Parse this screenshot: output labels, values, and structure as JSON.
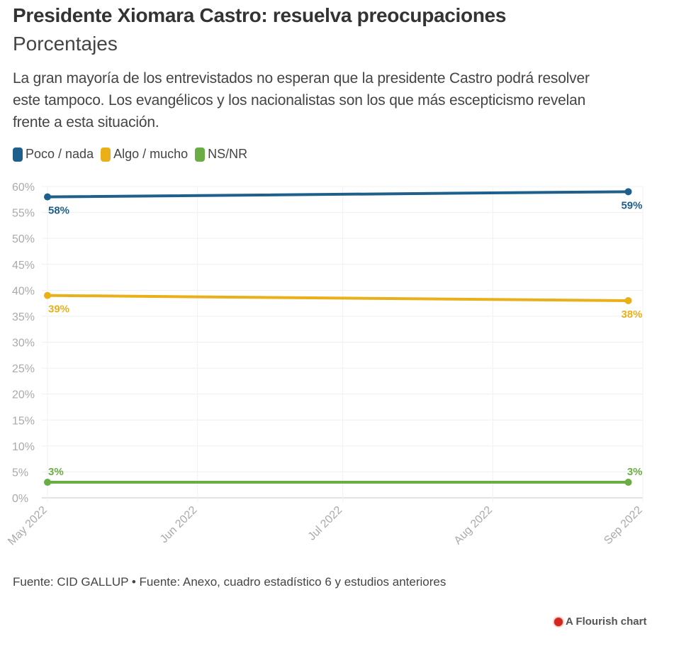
{
  "title": "Presidente Xiomara Castro: resuelva preocupaciones",
  "subtitle": "Porcentajes",
  "description": "La gran mayoría de los entrevistados no esperan que la presidente Castro podrá resolver este tampoco. Los evangélicos y los nacionalistas son los que más escepticismo revelan frente a esta situación.",
  "source": "Fuente: CID GALLUP • Fuente: Anexo, cuadro estadístico 6 y estudios anteriores",
  "brand": "A Flourish chart",
  "brand_icon": "flourish-logo-icon",
  "chart_data": {
    "type": "line",
    "title": "Presidente Xiomara Castro: resuelva preocupaciones",
    "subtitle": "Porcentajes",
    "x": [
      "2022-05-01",
      "2022-08-29"
    ],
    "xlim": [
      "2022-05-01",
      "2022-09-01"
    ],
    "x_ticks": [
      "May 2022",
      "Jun 2022",
      "Jul 2022",
      "Aug 2022",
      "Sep 2022"
    ],
    "x_tick_dates": [
      "2022-05-01",
      "2022-06-01",
      "2022-07-01",
      "2022-08-01",
      "2022-09-01"
    ],
    "ylim": [
      0,
      60
    ],
    "y_ticks": [
      "0%",
      "5%",
      "10%",
      "15%",
      "20%",
      "25%",
      "30%",
      "35%",
      "40%",
      "45%",
      "50%",
      "55%",
      "60%"
    ],
    "grid": true,
    "legend_position": "top-left",
    "series": [
      {
        "name": "Poco / nada",
        "color": "#1f5f8b",
        "values": [
          58,
          59
        ],
        "labels": [
          "58%",
          "59%"
        ],
        "label_position": "below"
      },
      {
        "name": "Algo / mucho",
        "color": "#e9b01a",
        "values": [
          39,
          38
        ],
        "labels": [
          "39%",
          "38%"
        ],
        "label_position": "below"
      },
      {
        "name": "NS/NR",
        "color": "#6aad45",
        "values": [
          3,
          3
        ],
        "labels": [
          "3%",
          "3%"
        ],
        "label_position": "above"
      }
    ]
  }
}
